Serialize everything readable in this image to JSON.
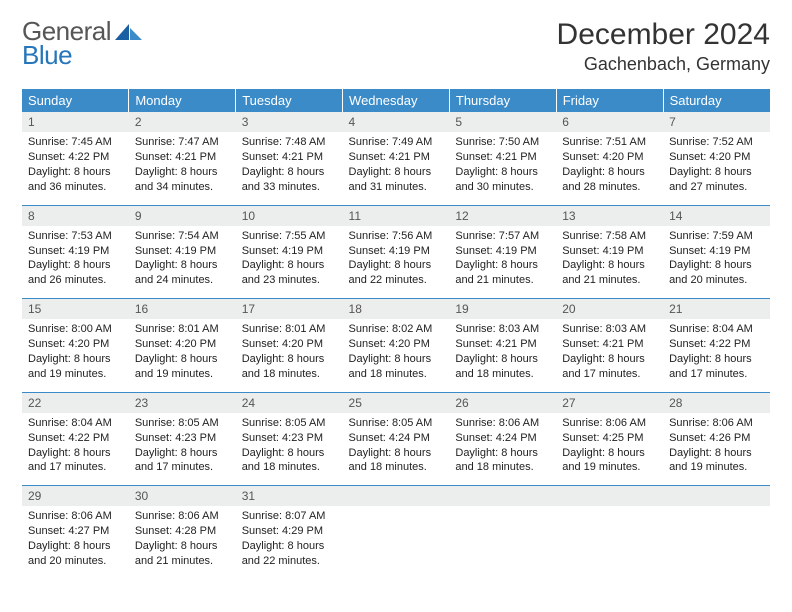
{
  "logo": {
    "word1": "General",
    "word2": "Blue"
  },
  "title": "December 2024",
  "location": "Gachenbach, Germany",
  "colors": {
    "header_bg": "#3b8bc9",
    "header_text": "#ffffff",
    "daynum_bg": "#eceeee",
    "border": "#3b8bc9",
    "logo_gray": "#565656",
    "logo_blue": "#2676bb"
  },
  "weekdays": [
    "Sunday",
    "Monday",
    "Tuesday",
    "Wednesday",
    "Thursday",
    "Friday",
    "Saturday"
  ],
  "weeks": [
    [
      {
        "n": "1",
        "sr": "Sunrise: 7:45 AM",
        "ss": "Sunset: 4:22 PM",
        "d1": "Daylight: 8 hours",
        "d2": "and 36 minutes."
      },
      {
        "n": "2",
        "sr": "Sunrise: 7:47 AM",
        "ss": "Sunset: 4:21 PM",
        "d1": "Daylight: 8 hours",
        "d2": "and 34 minutes."
      },
      {
        "n": "3",
        "sr": "Sunrise: 7:48 AM",
        "ss": "Sunset: 4:21 PM",
        "d1": "Daylight: 8 hours",
        "d2": "and 33 minutes."
      },
      {
        "n": "4",
        "sr": "Sunrise: 7:49 AM",
        "ss": "Sunset: 4:21 PM",
        "d1": "Daylight: 8 hours",
        "d2": "and 31 minutes."
      },
      {
        "n": "5",
        "sr": "Sunrise: 7:50 AM",
        "ss": "Sunset: 4:21 PM",
        "d1": "Daylight: 8 hours",
        "d2": "and 30 minutes."
      },
      {
        "n": "6",
        "sr": "Sunrise: 7:51 AM",
        "ss": "Sunset: 4:20 PM",
        "d1": "Daylight: 8 hours",
        "d2": "and 28 minutes."
      },
      {
        "n": "7",
        "sr": "Sunrise: 7:52 AM",
        "ss": "Sunset: 4:20 PM",
        "d1": "Daylight: 8 hours",
        "d2": "and 27 minutes."
      }
    ],
    [
      {
        "n": "8",
        "sr": "Sunrise: 7:53 AM",
        "ss": "Sunset: 4:19 PM",
        "d1": "Daylight: 8 hours",
        "d2": "and 26 minutes."
      },
      {
        "n": "9",
        "sr": "Sunrise: 7:54 AM",
        "ss": "Sunset: 4:19 PM",
        "d1": "Daylight: 8 hours",
        "d2": "and 24 minutes."
      },
      {
        "n": "10",
        "sr": "Sunrise: 7:55 AM",
        "ss": "Sunset: 4:19 PM",
        "d1": "Daylight: 8 hours",
        "d2": "and 23 minutes."
      },
      {
        "n": "11",
        "sr": "Sunrise: 7:56 AM",
        "ss": "Sunset: 4:19 PM",
        "d1": "Daylight: 8 hours",
        "d2": "and 22 minutes."
      },
      {
        "n": "12",
        "sr": "Sunrise: 7:57 AM",
        "ss": "Sunset: 4:19 PM",
        "d1": "Daylight: 8 hours",
        "d2": "and 21 minutes."
      },
      {
        "n": "13",
        "sr": "Sunrise: 7:58 AM",
        "ss": "Sunset: 4:19 PM",
        "d1": "Daylight: 8 hours",
        "d2": "and 21 minutes."
      },
      {
        "n": "14",
        "sr": "Sunrise: 7:59 AM",
        "ss": "Sunset: 4:19 PM",
        "d1": "Daylight: 8 hours",
        "d2": "and 20 minutes."
      }
    ],
    [
      {
        "n": "15",
        "sr": "Sunrise: 8:00 AM",
        "ss": "Sunset: 4:20 PM",
        "d1": "Daylight: 8 hours",
        "d2": "and 19 minutes."
      },
      {
        "n": "16",
        "sr": "Sunrise: 8:01 AM",
        "ss": "Sunset: 4:20 PM",
        "d1": "Daylight: 8 hours",
        "d2": "and 19 minutes."
      },
      {
        "n": "17",
        "sr": "Sunrise: 8:01 AM",
        "ss": "Sunset: 4:20 PM",
        "d1": "Daylight: 8 hours",
        "d2": "and 18 minutes."
      },
      {
        "n": "18",
        "sr": "Sunrise: 8:02 AM",
        "ss": "Sunset: 4:20 PM",
        "d1": "Daylight: 8 hours",
        "d2": "and 18 minutes."
      },
      {
        "n": "19",
        "sr": "Sunrise: 8:03 AM",
        "ss": "Sunset: 4:21 PM",
        "d1": "Daylight: 8 hours",
        "d2": "and 18 minutes."
      },
      {
        "n": "20",
        "sr": "Sunrise: 8:03 AM",
        "ss": "Sunset: 4:21 PM",
        "d1": "Daylight: 8 hours",
        "d2": "and 17 minutes."
      },
      {
        "n": "21",
        "sr": "Sunrise: 8:04 AM",
        "ss": "Sunset: 4:22 PM",
        "d1": "Daylight: 8 hours",
        "d2": "and 17 minutes."
      }
    ],
    [
      {
        "n": "22",
        "sr": "Sunrise: 8:04 AM",
        "ss": "Sunset: 4:22 PM",
        "d1": "Daylight: 8 hours",
        "d2": "and 17 minutes."
      },
      {
        "n": "23",
        "sr": "Sunrise: 8:05 AM",
        "ss": "Sunset: 4:23 PM",
        "d1": "Daylight: 8 hours",
        "d2": "and 17 minutes."
      },
      {
        "n": "24",
        "sr": "Sunrise: 8:05 AM",
        "ss": "Sunset: 4:23 PM",
        "d1": "Daylight: 8 hours",
        "d2": "and 18 minutes."
      },
      {
        "n": "25",
        "sr": "Sunrise: 8:05 AM",
        "ss": "Sunset: 4:24 PM",
        "d1": "Daylight: 8 hours",
        "d2": "and 18 minutes."
      },
      {
        "n": "26",
        "sr": "Sunrise: 8:06 AM",
        "ss": "Sunset: 4:24 PM",
        "d1": "Daylight: 8 hours",
        "d2": "and 18 minutes."
      },
      {
        "n": "27",
        "sr": "Sunrise: 8:06 AM",
        "ss": "Sunset: 4:25 PM",
        "d1": "Daylight: 8 hours",
        "d2": "and 19 minutes."
      },
      {
        "n": "28",
        "sr": "Sunrise: 8:06 AM",
        "ss": "Sunset: 4:26 PM",
        "d1": "Daylight: 8 hours",
        "d2": "and 19 minutes."
      }
    ],
    [
      {
        "n": "29",
        "sr": "Sunrise: 8:06 AM",
        "ss": "Sunset: 4:27 PM",
        "d1": "Daylight: 8 hours",
        "d2": "and 20 minutes."
      },
      {
        "n": "30",
        "sr": "Sunrise: 8:06 AM",
        "ss": "Sunset: 4:28 PM",
        "d1": "Daylight: 8 hours",
        "d2": "and 21 minutes."
      },
      {
        "n": "31",
        "sr": "Sunrise: 8:07 AM",
        "ss": "Sunset: 4:29 PM",
        "d1": "Daylight: 8 hours",
        "d2": "and 22 minutes."
      },
      {
        "empty": true
      },
      {
        "empty": true
      },
      {
        "empty": true
      },
      {
        "empty": true
      }
    ]
  ]
}
